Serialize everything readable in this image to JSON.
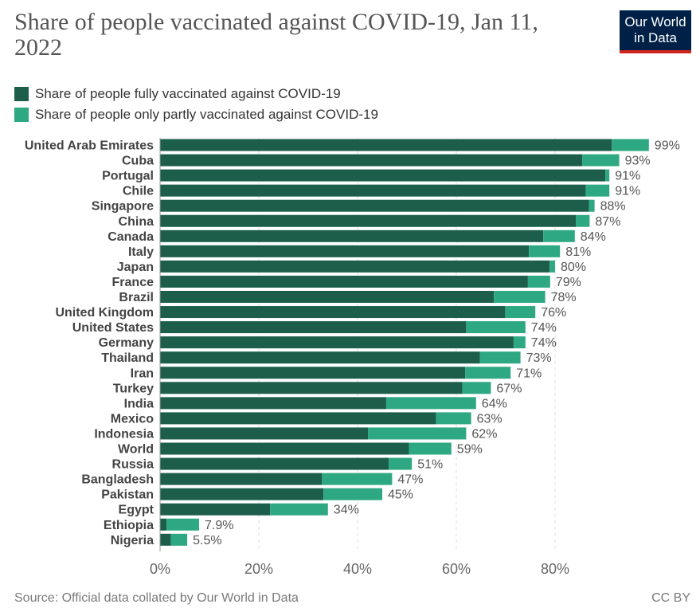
{
  "header": {
    "title": "Share of people vaccinated against COVID-19, Jan 11, 2022",
    "logo_line1": "Our World",
    "logo_line2": "in Data"
  },
  "colors": {
    "fully": "#1d5e4a",
    "partly": "#2ea883",
    "grid": "#dddddd"
  },
  "footer": {
    "source": "Source: Official data collated by Our World in Data",
    "license": "CC BY"
  },
  "chart_data": {
    "type": "bar",
    "orientation": "horizontal",
    "stacked": true,
    "title": "Share of people vaccinated against COVID-19, Jan 11, 2022",
    "legend": [
      "Share of people fully vaccinated against COVID-19",
      "Share of people only partly vaccinated against COVID-19"
    ],
    "categories": [
      "United Arab Emirates",
      "Cuba",
      "Portugal",
      "Chile",
      "Singapore",
      "China",
      "Canada",
      "Italy",
      "Japan",
      "France",
      "Brazil",
      "United Kingdom",
      "United States",
      "Germany",
      "Thailand",
      "Iran",
      "Turkey",
      "India",
      "Mexico",
      "Indonesia",
      "World",
      "Russia",
      "Bangladesh",
      "Pakistan",
      "Egypt",
      "Ethiopia",
      "Nigeria"
    ],
    "series": [
      {
        "name": "Share of people fully vaccinated against COVID-19",
        "values": [
          91.5,
          85.5,
          90.2,
          86.2,
          86.9,
          84.2,
          77.6,
          74.7,
          78.9,
          74.5,
          67.6,
          69.9,
          62.0,
          71.6,
          64.8,
          61.8,
          61.2,
          45.8,
          55.9,
          42.1,
          50.4,
          46.3,
          32.8,
          33.1,
          22.3,
          1.3,
          2.2
        ]
      },
      {
        "name": "Share of people only partly vaccinated against COVID-19",
        "values": [
          7.5,
          7.5,
          0.8,
          4.8,
          1.1,
          2.8,
          6.4,
          6.3,
          1.1,
          4.5,
          10.4,
          6.1,
          12.0,
          2.4,
          8.2,
          9.2,
          5.8,
          18.2,
          7.1,
          19.9,
          8.6,
          4.7,
          14.2,
          11.9,
          11.7,
          6.6,
          3.3
        ]
      }
    ],
    "value_labels": [
      "99%",
      "93%",
      "91%",
      "91%",
      "88%",
      "87%",
      "84%",
      "81%",
      "80%",
      "79%",
      "78%",
      "76%",
      "74%",
      "74%",
      "73%",
      "71%",
      "67%",
      "64%",
      "63%",
      "62%",
      "59%",
      "51%",
      "47%",
      "45%",
      "34%",
      "7.9%",
      "5.5%"
    ],
    "x_ticks": [
      0,
      20,
      40,
      60,
      80
    ],
    "x_tick_labels": [
      "0%",
      "20%",
      "40%",
      "60%",
      "80%"
    ],
    "xlim": [
      0,
      100
    ],
    "grid": true
  }
}
